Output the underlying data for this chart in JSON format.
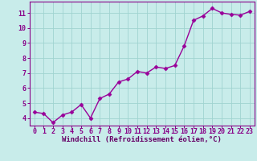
{
  "x": [
    0,
    1,
    2,
    3,
    4,
    5,
    6,
    7,
    8,
    9,
    10,
    11,
    12,
    13,
    14,
    15,
    16,
    17,
    18,
    19,
    20,
    21,
    22,
    23
  ],
  "y": [
    4.4,
    4.3,
    3.7,
    4.2,
    4.4,
    4.9,
    4.0,
    5.3,
    5.6,
    6.4,
    6.6,
    7.1,
    7.0,
    7.4,
    7.3,
    7.5,
    8.8,
    10.5,
    10.8,
    11.3,
    11.0,
    10.9,
    10.85,
    11.1
  ],
  "line_color": "#990099",
  "marker": "D",
  "marker_size": 2.5,
  "bg_color": "#c8ecea",
  "grid_color": "#a0d4d0",
  "xlabel": "Windchill (Refroidissement éolien,°C)",
  "xlim": [
    -0.5,
    23.5
  ],
  "ylim": [
    3.5,
    11.75
  ],
  "yticks": [
    4,
    5,
    6,
    7,
    8,
    9,
    10,
    11
  ],
  "xticks": [
    0,
    1,
    2,
    3,
    4,
    5,
    6,
    7,
    8,
    9,
    10,
    11,
    12,
    13,
    14,
    15,
    16,
    17,
    18,
    19,
    20,
    21,
    22,
    23
  ],
  "tick_color": "#880088",
  "label_color": "#660066",
  "xlabel_fontsize": 6.5,
  "tick_fontsize": 6.0,
  "line_width": 1.0
}
